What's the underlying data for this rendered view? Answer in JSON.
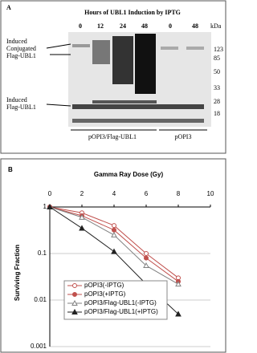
{
  "panel_a": {
    "label": "A",
    "title": "Hours of UBL1 Induction by IPTG",
    "lanes": [
      "0",
      "12",
      "24",
      "48",
      "0",
      "48"
    ],
    "unit": "kDa",
    "markers": [
      "123",
      "85",
      "50",
      "33",
      "28",
      "18"
    ],
    "annotation_conjugated": [
      "Induced",
      "Conjugated",
      "Flag-UBL1"
    ],
    "annotation_free": [
      "Induced",
      "Flag-UBL1"
    ],
    "groups": [
      "pOPI3/Flag-UBL1",
      "pOPI3"
    ]
  },
  "chart_data": {
    "type": "line",
    "panel_label": "B",
    "x_label": "Gamma Ray Dose (Gy)",
    "y_label": "Surviving Fraction",
    "x": [
      0,
      2,
      4,
      6,
      8
    ],
    "xlim": [
      0,
      10
    ],
    "xticks": [
      0,
      2,
      4,
      6,
      8,
      10
    ],
    "ylim": [
      0.001,
      1
    ],
    "yticks": [
      1,
      0.1,
      0.01,
      0.001
    ],
    "log_y": true,
    "grid": true,
    "legend": "lower left",
    "series": [
      {
        "name": "pOPI3(-IPTG)",
        "color": "#c0504d",
        "marker": "circle",
        "filled": false,
        "values": [
          1,
          0.75,
          0.4,
          0.1,
          0.03
        ]
      },
      {
        "name": "pOPI3(+IPTG)",
        "color": "#c0504d",
        "marker": "circle",
        "filled": true,
        "values": [
          1,
          0.65,
          0.32,
          0.08,
          0.025
        ]
      },
      {
        "name": "pOPI3/Flag-UBL1(-IPTG)",
        "color": "#808080",
        "marker": "triangle",
        "filled": false,
        "values": [
          1,
          0.6,
          0.25,
          0.055,
          0.022
        ]
      },
      {
        "name": "pOPI3/Flag-UBL1(+IPTG)",
        "color": "#222222",
        "marker": "triangle",
        "filled": true,
        "values": [
          1,
          0.35,
          0.11,
          0.022,
          0.005
        ]
      }
    ]
  }
}
